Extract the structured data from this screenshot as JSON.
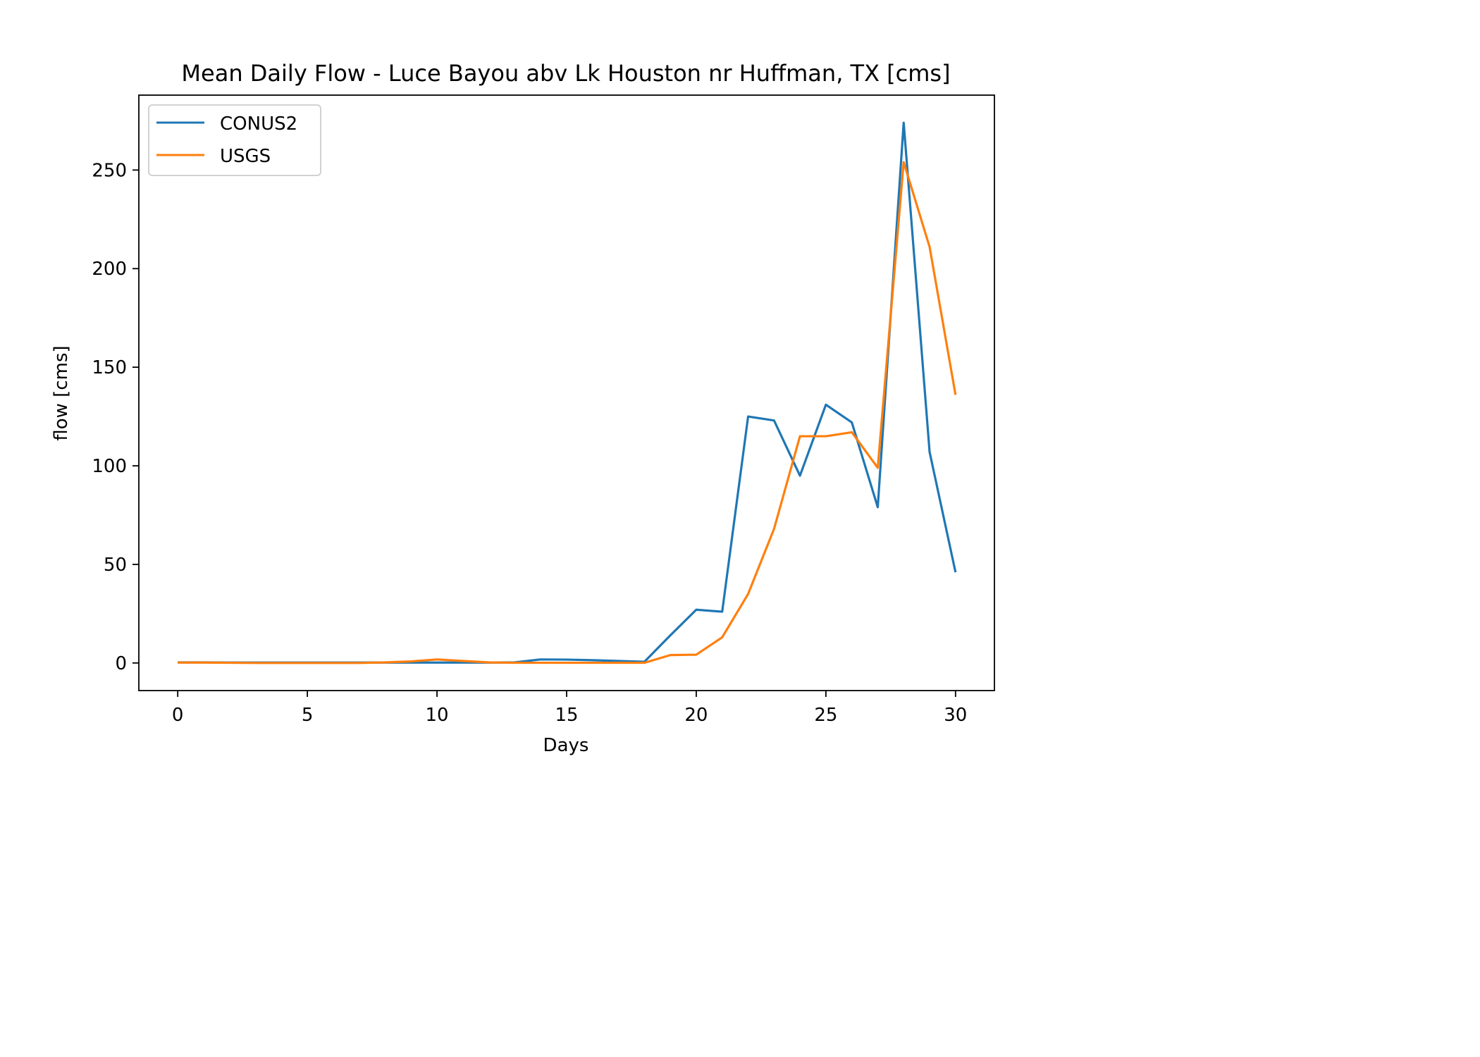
{
  "chart_data": {
    "type": "line",
    "title": "Mean Daily Flow - Luce Bayou abv Lk Houston nr Huffman, TX [cms]",
    "xlabel": "Days",
    "ylabel": "flow [cms]",
    "xlim": [
      -1.5,
      31.5
    ],
    "ylim": [
      -14,
      288
    ],
    "xticks": [
      0,
      5,
      10,
      15,
      20,
      25,
      30
    ],
    "yticks": [
      0,
      50,
      100,
      150,
      200,
      250
    ],
    "x": [
      0,
      1,
      2,
      3,
      4,
      5,
      6,
      7,
      8,
      9,
      10,
      11,
      12,
      13,
      14,
      15,
      16,
      17,
      18,
      19,
      20,
      21,
      22,
      23,
      24,
      25,
      26,
      27,
      28,
      29,
      30
    ],
    "series": [
      {
        "name": "CONUS2",
        "color": "#1f77b4",
        "values": [
          0.3,
          0.3,
          0.2,
          0.2,
          0.2,
          0.2,
          0.2,
          0.2,
          0.2,
          0.2,
          0.2,
          0.2,
          0.2,
          0.3,
          1.8,
          1.7,
          1.4,
          1.0,
          0.6,
          14,
          27,
          26,
          125,
          123,
          95,
          131,
          122,
          79,
          274,
          107,
          46
        ]
      },
      {
        "name": "USGS",
        "color": "#ff7f0e",
        "values": [
          0.2,
          0.2,
          0.1,
          0.0,
          0.0,
          0.0,
          0.0,
          0.0,
          0.3,
          0.8,
          1.8,
          1.0,
          0.3,
          0.1,
          0.1,
          0.1,
          0.1,
          0.1,
          0.1,
          4,
          4.2,
          13,
          35,
          68,
          115,
          115,
          117,
          99,
          254,
          211,
          136
        ]
      }
    ],
    "grid": false,
    "legend_position": "top-left"
  }
}
